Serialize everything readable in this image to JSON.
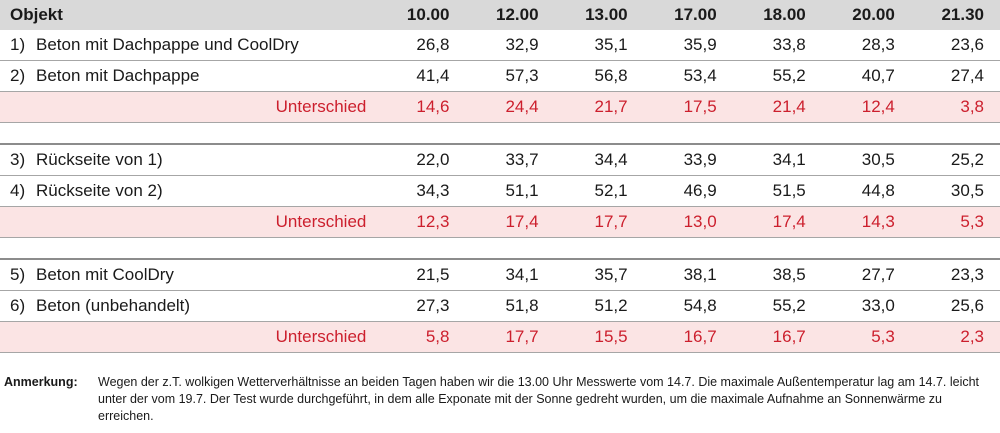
{
  "header": {
    "object": "Objekt",
    "times": [
      "10.00",
      "12.00",
      "13.00",
      "17.00",
      "18.00",
      "20.00",
      "21.30"
    ]
  },
  "groups": [
    {
      "rows": [
        {
          "num": "1)",
          "label": "Beton mit Dachpappe und CoolDry",
          "values": [
            "26,8",
            "32,9",
            "35,1",
            "35,9",
            "33,8",
            "28,3",
            "23,6"
          ]
        },
        {
          "num": "2)",
          "label": "Beton mit Dachpappe",
          "values": [
            "41,4",
            "57,3",
            "56,8",
            "53,4",
            "55,2",
            "40,7",
            "27,4"
          ]
        }
      ],
      "diff": {
        "label": "Unterschied",
        "values": [
          "14,6",
          "24,4",
          "21,7",
          "17,5",
          "21,4",
          "12,4",
          "3,8"
        ]
      }
    },
    {
      "rows": [
        {
          "num": "3)",
          "label": "Rückseite von 1)",
          "values": [
            "22,0",
            "33,7",
            "34,4",
            "33,9",
            "34,1",
            "30,5",
            "25,2"
          ]
        },
        {
          "num": "4)",
          "label": "Rückseite von 2)",
          "values": [
            "34,3",
            "51,1",
            "52,1",
            "46,9",
            "51,5",
            "44,8",
            "30,5"
          ]
        }
      ],
      "diff": {
        "label": "Unterschied",
        "values": [
          "12,3",
          "17,4",
          "17,7",
          "13,0",
          "17,4",
          "14,3",
          "5,3"
        ]
      }
    },
    {
      "rows": [
        {
          "num": "5)",
          "label": "Beton mit CoolDry",
          "values": [
            "21,5",
            "34,1",
            "35,7",
            "38,1",
            "38,5",
            "27,7",
            "23,3"
          ]
        },
        {
          "num": "6)",
          "label": "Beton (unbehandelt)",
          "values": [
            "27,3",
            "51,8",
            "51,2",
            "54,8",
            "55,2",
            "33,0",
            "25,6"
          ]
        }
      ],
      "diff": {
        "label": "Unterschied",
        "values": [
          "5,8",
          "17,7",
          "15,5",
          "16,7",
          "16,7",
          "5,3",
          "2,3"
        ]
      }
    }
  ],
  "note": {
    "label": "Anmerkung:",
    "text": "Wegen der z.T. wolkigen Wetterverhältnisse an beiden Tagen haben wir die 13.00 Uhr Messwerte vom 14.7. Die maximale Außentemperatur lag am 14.7. leicht unter der vom 19.7. Der Test wurde durchgeführt, in dem alle Exponate mit der Sonne gedreht wurden, um die maximale Aufnahme an Sonnenwärme zu erreichen."
  },
  "colors": {
    "header_bg": "#d9d9d9",
    "diff_bg": "#fbe4e4",
    "diff_text": "#cc1f2d"
  }
}
